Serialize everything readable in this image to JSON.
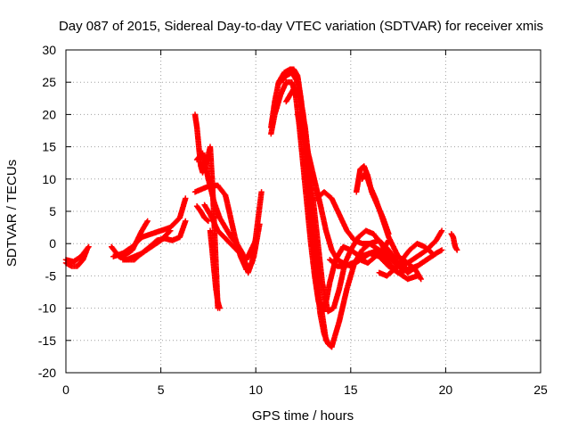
{
  "chart_data": {
    "type": "scatter",
    "title": "Day 087 of 2015, Sidereal Day-to-day VTEC variation (SDTVAR) for receiver xmis",
    "xlabel": "GPS time / hours",
    "ylabel": "SDTVAR / TECUs",
    "xlim": [
      0,
      25
    ],
    "ylim": [
      -20,
      30
    ],
    "xticks": [
      0,
      5,
      10,
      15,
      20,
      25
    ],
    "xtick_labels": [
      "0",
      "5",
      "10",
      "15",
      "20",
      "25"
    ],
    "yticks": [
      -20,
      -15,
      -10,
      -5,
      0,
      5,
      10,
      15,
      20,
      25,
      30
    ],
    "ytick_labels": [
      "-20",
      "-15",
      "-10",
      "-5",
      "0",
      "5",
      "10",
      "15",
      "20",
      "25",
      "30"
    ],
    "grid": true,
    "legend": "none",
    "marker": "+",
    "color": "#ff0000",
    "series": [
      {
        "x": [
          0.0,
          0.3,
          0.6,
          0.9,
          1.1
        ],
        "y": [
          -3.0,
          -3.5,
          -3.5,
          -2.5,
          -1.0
        ]
      },
      {
        "x": [
          0.0,
          0.4,
          0.8,
          1.2
        ],
        "y": [
          -2.5,
          -2.8,
          -2.0,
          -0.5
        ]
      },
      {
        "x": [
          2.4,
          2.8,
          3.2,
          3.6,
          4.0
        ],
        "y": [
          -0.5,
          -2.0,
          -2.5,
          -2.0,
          -1.5
        ]
      },
      {
        "x": [
          2.5,
          3.0,
          3.5,
          4.0,
          4.5,
          5.0,
          5.5,
          6.0,
          6.3
        ],
        "y": [
          -2.0,
          -1.5,
          -0.5,
          1.0,
          1.5,
          2.0,
          2.5,
          4.0,
          7.0
        ]
      },
      {
        "x": [
          3.0,
          3.5,
          4.0,
          4.3
        ],
        "y": [
          -2.0,
          -1.0,
          2.0,
          3.5
        ]
      },
      {
        "x": [
          3.0,
          3.6,
          4.0,
          4.4,
          4.8,
          5.2,
          5.6,
          6.0,
          6.3
        ],
        "y": [
          -2.5,
          -2.5,
          -1.5,
          -0.5,
          0.5,
          0.8,
          0.5,
          1.0,
          3.5
        ]
      },
      {
        "x": [
          4.0,
          4.5,
          5.0,
          5.5
        ],
        "y": [
          -1.5,
          -0.5,
          0.5,
          2.0
        ]
      },
      {
        "x": [
          6.8,
          6.9,
          7.0,
          7.1,
          7.2,
          7.4,
          7.6,
          7.7,
          7.8,
          8.0
        ],
        "y": [
          20.0,
          18.0,
          15.0,
          12.0,
          11.0,
          12.5,
          15.0,
          10.0,
          4.0,
          -10.0
        ]
      },
      {
        "x": [
          6.8,
          7.2,
          7.6,
          8.0,
          8.4,
          8.6,
          8.9,
          9.2,
          9.5,
          9.8,
          10.0,
          10.3
        ],
        "y": [
          8.0,
          8.5,
          9.0,
          9.0,
          7.5,
          5.0,
          1.0,
          -2.0,
          -4.0,
          -3.0,
          1.0,
          8.0
        ]
      },
      {
        "x": [
          6.9,
          7.2,
          7.5,
          7.8,
          8.1,
          8.4,
          8.7,
          9.0,
          9.3,
          9.6,
          9.9,
          10.2
        ],
        "y": [
          13.0,
          14.0,
          10.0,
          6.5,
          4.0,
          2.5,
          1.0,
          0.0,
          -1.5,
          -4.5,
          -2.0,
          3.0
        ]
      },
      {
        "x": [
          7.3,
          7.6,
          8.0,
          8.5,
          9.0,
          9.5,
          10.0
        ],
        "y": [
          6.0,
          4.5,
          2.0,
          0.5,
          -1.0,
          -2.5,
          0.5
        ]
      },
      {
        "x": [
          6.9,
          7.1,
          7.3,
          7.5
        ],
        "y": [
          5.8,
          5.0,
          4.0,
          3.5
        ]
      },
      {
        "x": [
          7.6,
          7.7,
          7.8,
          7.9,
          8.0,
          8.1
        ],
        "y": [
          2.0,
          -1.0,
          -4.0,
          -7.0,
          -9.0,
          -10.0
        ]
      },
      {
        "x": [
          10.8,
          11.0,
          11.2,
          11.5,
          11.8,
          12.0,
          12.2,
          12.4,
          12.6,
          12.8,
          13.0,
          13.2,
          13.4,
          13.6,
          13.8,
          14.0
        ],
        "y": [
          18.0,
          22.0,
          25.0,
          26.5,
          27.0,
          27.0,
          26.0,
          22.0,
          15.0,
          7.0,
          0.0,
          -6.0,
          -11.0,
          -14.0,
          -15.5,
          -16.0
        ]
      },
      {
        "x": [
          10.8,
          11.0,
          11.3,
          11.6,
          11.9,
          12.1,
          12.3,
          12.5,
          12.7,
          12.9,
          13.1,
          13.3,
          13.5,
          13.7,
          13.9,
          14.2,
          14.6,
          15.0,
          15.5,
          16.0,
          16.5,
          17.0,
          17.5,
          18.0,
          18.5
        ],
        "y": [
          17.0,
          20.0,
          23.0,
          25.0,
          25.0,
          23.0,
          18.0,
          12.0,
          6.0,
          0.0,
          -5.0,
          -9.0,
          -10.5,
          -9.0,
          -6.0,
          -2.5,
          -0.5,
          -1.0,
          -2.0,
          -1.5,
          -2.0,
          -3.5,
          -4.5,
          -4.0,
          -3.5
        ]
      },
      {
        "x": [
          11.3,
          11.6,
          11.9,
          12.2,
          12.5,
          12.8,
          13.1,
          13.4,
          13.7,
          14.0,
          14.4,
          14.8,
          15.2,
          15.6,
          16.0,
          16.5,
          17.0,
          17.5,
          18.0,
          18.5
        ],
        "y": [
          25.0,
          26.0,
          26.5,
          25.0,
          20.0,
          10.0,
          0.0,
          -9.0,
          -15.0,
          -16.0,
          -12.0,
          -7.0,
          -3.0,
          -1.0,
          0.0,
          -1.0,
          -3.0,
          -4.5,
          -5.5,
          -5.0
        ]
      },
      {
        "x": [
          11.6,
          12.0,
          12.3,
          12.6,
          12.9,
          13.2,
          13.5,
          13.8,
          14.1,
          14.4,
          14.7,
          15.0,
          15.4,
          15.8,
          16.2,
          16.6,
          17.0,
          17.5,
          18.0,
          18.5,
          19.0,
          19.5,
          19.8
        ],
        "y": [
          22.0,
          24.0,
          23.0,
          18.0,
          10.0,
          2.0,
          -6.0,
          -10.5,
          -10.0,
          -7.0,
          -3.0,
          -1.0,
          1.0,
          2.0,
          1.5,
          0.0,
          -2.0,
          -3.5,
          -3.0,
          -2.0,
          -1.0,
          0.5,
          2.0
        ]
      },
      {
        "x": [
          12.2,
          12.6,
          13.0,
          13.4,
          13.7,
          14.0,
          14.3,
          14.6,
          15.0,
          15.5,
          16.0,
          16.5,
          17.0,
          17.5,
          18.0,
          18.5,
          19.0,
          19.5,
          19.8
        ],
        "y": [
          20.0,
          16.0,
          11.0,
          6.0,
          2.0,
          -1.0,
          -2.5,
          -3.0,
          -3.5,
          -2.5,
          -1.5,
          -1.0,
          -2.0,
          -3.5,
          -4.0,
          -3.5,
          -2.5,
          -1.5,
          -1.0
        ]
      },
      {
        "x": [
          13.2,
          13.6,
          14.0,
          14.4,
          14.8,
          15.2,
          15.6,
          16.0,
          16.5,
          17.0,
          17.5,
          18.0,
          18.5,
          19.0,
          19.5
        ],
        "y": [
          7.0,
          8.0,
          7.0,
          4.5,
          2.0,
          0.5,
          0.0,
          0.0,
          0.5,
          -1.0,
          -3.0,
          -4.5,
          -3.5,
          -2.5,
          -1.5
        ]
      },
      {
        "x": [
          15.3,
          15.5,
          15.7,
          15.9,
          16.1,
          16.4,
          16.7,
          17.0
        ],
        "y": [
          8.0,
          11.5,
          12.0,
          10.5,
          8.0,
          6.0,
          4.0,
          1.5
        ]
      },
      {
        "x": [
          15.6,
          15.8,
          16.0,
          16.3,
          16.6,
          17.0,
          17.5,
          18.0,
          18.4,
          18.7
        ],
        "y": [
          10.0,
          11.0,
          9.0,
          7.0,
          4.5,
          1.0,
          -2.0,
          -3.0,
          -4.0,
          -5.5
        ]
      },
      {
        "x": [
          13.9,
          14.3,
          14.7,
          15.1,
          15.5,
          15.9,
          16.3,
          16.7,
          17.0
        ],
        "y": [
          -2.5,
          -3.5,
          -3.5,
          -3.0,
          -2.5,
          -3.0,
          -2.0,
          -1.0,
          0.5
        ]
      },
      {
        "x": [
          16.5,
          16.9,
          17.3,
          17.7,
          18.1,
          18.5,
          18.9,
          19.3
        ],
        "y": [
          -4.5,
          -5.0,
          -4.0,
          -2.5,
          -1.0,
          0.0,
          -0.5,
          -1.5
        ]
      },
      {
        "x": [
          20.3,
          20.4,
          20.5,
          20.6
        ],
        "y": [
          1.5,
          1.0,
          -0.5,
          -1.0
        ]
      }
    ]
  }
}
